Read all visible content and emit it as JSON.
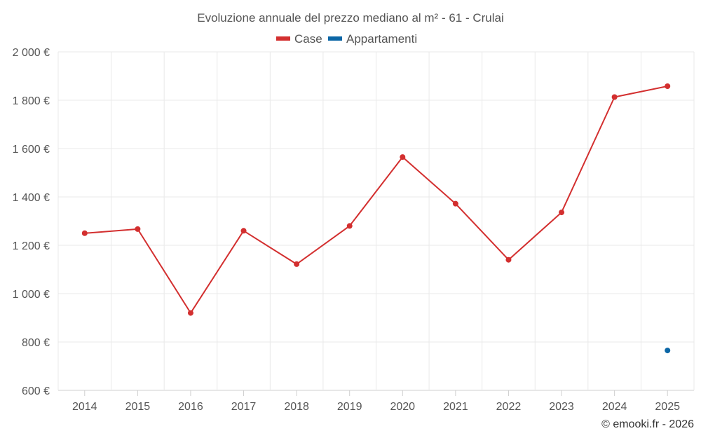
{
  "chart_data": {
    "type": "line",
    "title": "Evoluzione annuale del prezzo mediano al m² - 61 - Crulai",
    "categories": [
      "2014",
      "2015",
      "2016",
      "2017",
      "2018",
      "2019",
      "2020",
      "2021",
      "2022",
      "2023",
      "2024",
      "2025"
    ],
    "series": [
      {
        "name": "Case",
        "color": "#d32f2f",
        "values": [
          1250,
          1267,
          920,
          1260,
          1122,
          1280,
          1565,
          1372,
          1140,
          1336,
          1813,
          1858
        ]
      },
      {
        "name": "Appartamenti",
        "color": "#0b66a6",
        "values": [
          null,
          null,
          null,
          null,
          null,
          null,
          null,
          null,
          null,
          null,
          null,
          765
        ]
      }
    ],
    "ylim": [
      600,
      2000
    ],
    "yticks": [
      600,
      800,
      1000,
      1200,
      1400,
      1600,
      1800,
      2000
    ],
    "ytick_labels": [
      "600 €",
      "800 €",
      "1 000 €",
      "1 200 €",
      "1 400 €",
      "1 600 €",
      "1 800 €",
      "2 000 €"
    ],
    "xlabel": "",
    "ylabel": "",
    "legend_position": "top-center",
    "grid": true
  },
  "credit": "© emooki.fr - 2026"
}
